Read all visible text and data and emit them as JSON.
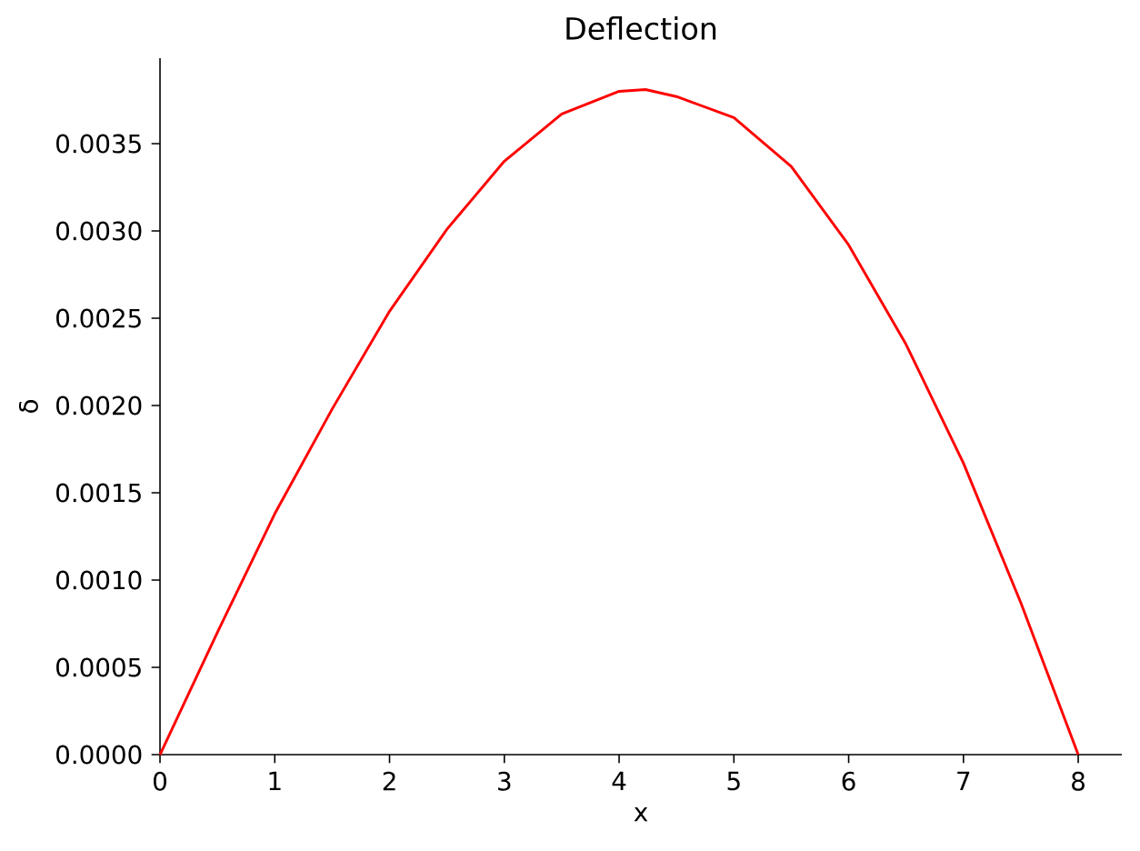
{
  "chart_data": {
    "type": "line",
    "title": "Deflection",
    "xlabel": "x",
    "ylabel": "δ",
    "x": [
      0,
      0.5,
      1,
      1.5,
      2,
      2.5,
      3,
      3.5,
      4,
      4.23,
      4.5,
      5,
      5.5,
      6,
      6.5,
      7,
      7.5,
      8
    ],
    "series": [
      {
        "color": "#ff0000",
        "values": [
          0,
          0.0007,
          0.00138,
          0.00198,
          0.00254,
          0.00301,
          0.0034,
          0.00367,
          0.0038,
          0.00381,
          0.00377,
          0.00365,
          0.00337,
          0.00292,
          0.00235,
          0.00167,
          0.00087,
          0
        ]
      }
    ],
    "xlim": [
      0,
      8.38
    ],
    "ylim": [
      0,
      0.00399
    ],
    "xticks": [
      0,
      1,
      2,
      3,
      4,
      5,
      6,
      7,
      8
    ],
    "yticks": [
      {
        "value": 0,
        "label": "0.0000"
      },
      {
        "value": 0.0005,
        "label": "0.0005"
      },
      {
        "value": 0.001,
        "label": "0.0010"
      },
      {
        "value": 0.0015,
        "label": "0.0015"
      },
      {
        "value": 0.002,
        "label": "0.0020"
      },
      {
        "value": 0.0025,
        "label": "0.0025"
      },
      {
        "value": 0.003,
        "label": "0.0030"
      },
      {
        "value": 0.0035,
        "label": "0.0035"
      }
    ]
  }
}
